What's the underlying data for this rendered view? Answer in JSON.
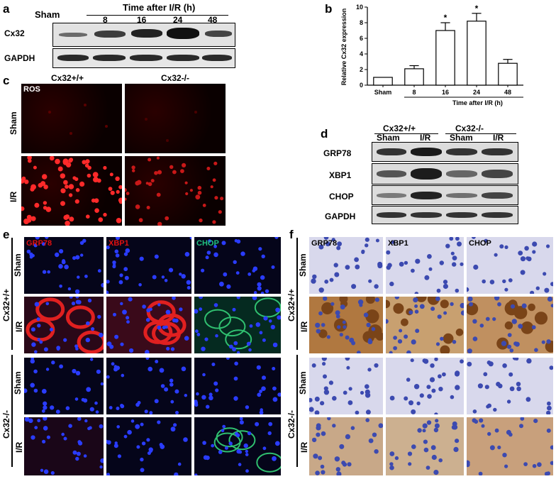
{
  "panels": {
    "a": {
      "letter": "a",
      "group_left": "Sham",
      "time_header": "Time after I/R (h)",
      "lanes": [
        "8",
        "16",
        "24",
        "48"
      ],
      "rows": [
        "Cx32",
        "GAPDH"
      ]
    },
    "b": {
      "letter": "b",
      "chart_data": {
        "type": "bar",
        "categories": [
          "Sham",
          "8",
          "16",
          "24",
          "48"
        ],
        "values": [
          1.0,
          2.1,
          7.0,
          8.2,
          2.8
        ],
        "errors": [
          0.0,
          0.4,
          1.0,
          1.0,
          0.5
        ],
        "significant": [
          false,
          false,
          true,
          true,
          false
        ],
        "significance_marker": "*",
        "ylabel": "Relative Cx32 expression",
        "xlabel": "Time after I/R (h)",
        "ylim": [
          0,
          10
        ],
        "yticks": [
          "0",
          "2",
          "4",
          "6",
          "8",
          "10"
        ],
        "bar_color": "#ffffff",
        "grid": false
      }
    },
    "c": {
      "letter": "c",
      "col_headers": [
        "Cx32+/+",
        "Cx32-/-"
      ],
      "row_labels": [
        "Sham",
        "I/R"
      ],
      "stain_label": "ROS"
    },
    "d": {
      "letter": "d",
      "group_headers": [
        "Cx32+/+",
        "Cx32-/-"
      ],
      "lane_labels": [
        "Sham",
        "I/R",
        "Sham",
        "I/R"
      ],
      "rows": [
        "GRP78",
        "XBP1",
        "CHOP",
        "GAPDH"
      ]
    },
    "e": {
      "letter": "e",
      "stains": [
        "GRP78",
        "XBP1",
        "CHOP"
      ],
      "stain_colors": [
        "#e01010",
        "#e01010",
        "#20c080"
      ],
      "genotypes": [
        "Cx32+/+",
        "Cx32-/-"
      ],
      "conditions": [
        "Sham",
        "I/R",
        "Sham",
        "I/R"
      ]
    },
    "f": {
      "letter": "f",
      "stains": [
        "GRP78",
        "XBP1",
        "CHOP"
      ],
      "genotypes": [
        "Cx32+/+",
        "Cx32-/-"
      ],
      "conditions": [
        "Sham",
        "I/R",
        "Sham",
        "I/R"
      ]
    }
  }
}
